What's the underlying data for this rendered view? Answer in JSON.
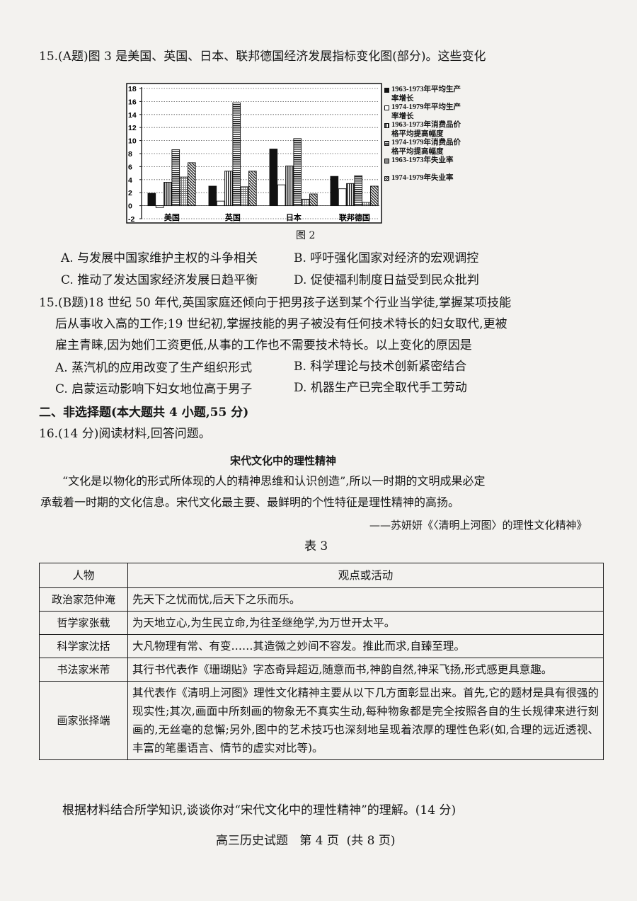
{
  "q15a": {
    "stem": "15.(A题)图 3 是美国、英国、日本、联邦德国经济发展指标变化图(部分)。这些变化",
    "caption": "图 2",
    "options": [
      "A. 与发展中国家维护主权的斗争相关",
      "B. 呼吁强化国家对经济的宏观调控",
      "C. 推动了发达国家经济发展日趋平衡",
      "D. 促使福利制度日益受到民众批判"
    ]
  },
  "chart_data": {
    "type": "bar",
    "categories": [
      "美国",
      "英国",
      "日本",
      "联邦德国"
    ],
    "ylim": [
      -2,
      18
    ],
    "yticks": [
      "18",
      "16",
      "14",
      "12",
      "10",
      "8",
      "6",
      "4",
      "2",
      "0",
      "-2"
    ],
    "grid": true,
    "legend_position": "right",
    "series": [
      {
        "name": "1963-1973年平均生产率增长",
        "values": [
          1.9,
          3.0,
          8.7,
          4.5
        ],
        "pattern": "solid-black"
      },
      {
        "name": "1974-1979年平均生产率增长",
        "values": [
          -0.3,
          0.7,
          3.2,
          2.6
        ],
        "pattern": "white"
      },
      {
        "name": "1963-1973年消费品价格平均提高幅度",
        "values": [
          3.6,
          5.3,
          6.1,
          3.4
        ],
        "pattern": "vertical-stripes"
      },
      {
        "name": "1974-1979年消费品价格平均提高幅度",
        "values": [
          8.6,
          15.8,
          10.3,
          4.6
        ],
        "pattern": "horizontal-stripes"
      },
      {
        "name": "1963-1973年失业率",
        "values": [
          4.4,
          2.9,
          1.0,
          0.5
        ],
        "pattern": "grid"
      },
      {
        "name": "1974-1979年失业率",
        "values": [
          6.6,
          5.3,
          1.8,
          3.0
        ],
        "pattern": "diagonal-stripes"
      }
    ]
  },
  "q15b": {
    "lines": [
      "15.(B题)18 世纪 50 年代,英国家庭还倾向于把男孩子送到某个行业当学徒,掌握某项技能",
      "后从事收入高的工作;19 世纪初,掌握技能的男子被没有任何技术特长的妇女取代,更被",
      "雇主青睐,因为她们工资更低,从事的工作也不需要技术特长。以上变化的原因是"
    ],
    "options": [
      "A. 蒸汽机的应用改变了生产组织形式",
      "B. 科学理论与技术创新紧密结合",
      "C. 启蒙运动影响下妇女地位高于男子",
      "D. 机器生产已完全取代手工劳动"
    ]
  },
  "section2": "二、非选择题(本大题共 4 小题,55 分)",
  "q16": {
    "stem": "16.(14 分)阅读材料,回答问题。",
    "title": "宋代文化中的理性精神",
    "para": [
      "“文化是以物化的形式所体现的人的精神思维和认识创造”,所以一时期的文明成果必定",
      "承载着一时期的文化信息。宋代文化最主要、最鲜明的个性特征是理性精神的高扬。"
    ],
    "source": "——苏妍妍《〈清明上河图〉的理性文化精神》",
    "table_caption": "表 3",
    "table": {
      "headers": [
        "人物",
        "观点或活动"
      ],
      "rows": [
        {
          "person": "政治家范仲淹",
          "content": "先天下之忧而忧,后天下之乐而乐。"
        },
        {
          "person": "哲学家张载",
          "content": "为天地立心,为生民立命,为往圣继绝学,为万世开太平。"
        },
        {
          "person": "科学家沈括",
          "content": "大凡物理有常、有变……其造微之妙间不容发。推此而求,自臻至理。"
        },
        {
          "person": "书法家米芾",
          "content": "其行书代表作《珊瑚贴》字态奇异超迈,随意而书,神韵自然,神采飞扬,形式感更具意趣。"
        },
        {
          "person": "画家张择端",
          "content": "其代表作《清明上河图》理性文化精神主要从以下几方面彰显出来。首先,它的题材是具有很强的现实性;其次,画面中所刻画的物象无不真实生动,每种物象都是完全按照各自的生长规律来进行刻画的,无丝毫的怠懈;另外,图中的艺术技巧也深刻地呈现着浓厚的理性色彩(如,合理的远近透视、丰富的笔墨语言、情节的虚实对比等)。"
        }
      ]
    },
    "question": "根据材料结合所学知识,谈谈你对“宋代文化中的理性精神”的理解。(14 分)"
  },
  "footer": "高三历史试题   第 4 页  (共 8 页)"
}
